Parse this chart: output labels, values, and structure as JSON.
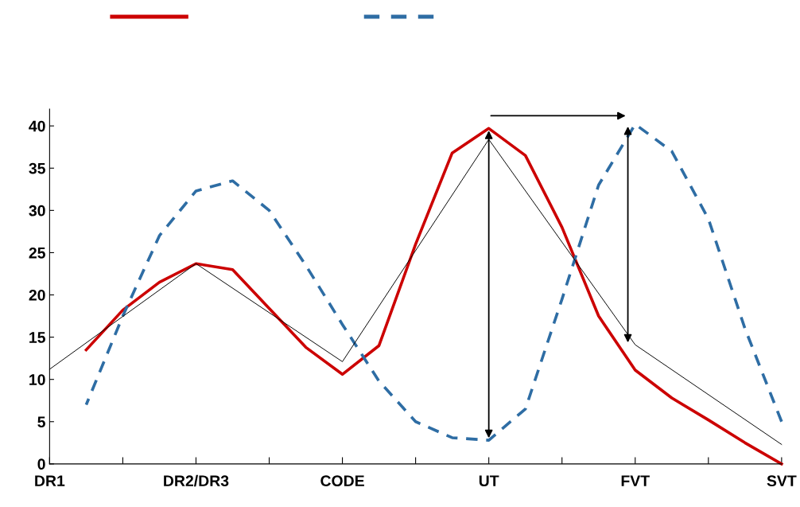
{
  "chart_data": {
    "type": "line",
    "categories": [
      "DR1",
      null,
      null,
      null,
      "DR2/DR3",
      null,
      null,
      null,
      "CODE",
      null,
      null,
      null,
      "UT",
      null,
      null,
      null,
      "FVT",
      null,
      null,
      null,
      "SVT"
    ],
    "ylim": [
      0,
      42
    ],
    "yticks": [
      0,
      5,
      10,
      15,
      20,
      25,
      30,
      35,
      40
    ],
    "grid": false,
    "series": [
      {
        "color": "#000000",
        "line_style": "solid",
        "values": [
          11.2,
          null,
          null,
          null,
          23.7,
          null,
          null,
          null,
          12.1,
          null,
          null,
          null,
          38.4,
          null,
          null,
          null,
          14.1,
          null,
          null,
          null,
          2.3
        ]
      },
      {
        "color": "#cc0000",
        "line_style": "solid",
        "values": [
          null,
          13.5,
          18.2,
          21.5,
          23.7,
          23.0,
          18.4,
          13.8,
          10.6,
          14.0,
          26.0,
          36.8,
          39.7,
          36.5,
          28.0,
          17.5,
          11.1,
          7.8,
          5.2,
          2.5,
          0.0
        ]
      },
      {
        "color": "#2e6da4",
        "line_style": "dashed",
        "values": [
          null,
          7.0,
          17.5,
          27.0,
          32.3,
          33.5,
          30.0,
          23.5,
          16.5,
          9.8,
          5.0,
          3.1,
          2.8,
          6.5,
          19.5,
          33.0,
          40.2,
          37.0,
          29.0,
          16.0,
          5.0
        ]
      }
    ]
  }
}
